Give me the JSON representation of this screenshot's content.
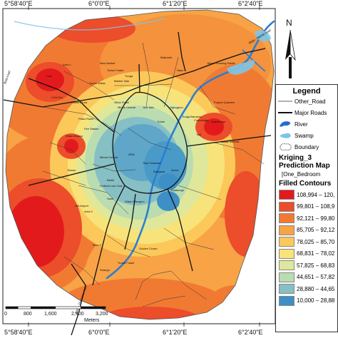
{
  "coords": {
    "top": [
      "5°58'40\"E",
      "6°0'0\"E",
      "6°1'20\"E",
      "6°2'40\"E"
    ],
    "bottom": [
      "5°58'40\"E",
      "6°0'0\"E",
      "6°1'20\"E",
      "6°2'40\"E"
    ]
  },
  "north": "N",
  "scale": {
    "ticks": [
      "0",
      "800",
      "1,600",
      "2,400",
      "3,200"
    ],
    "unit": "Meters"
  },
  "legend": {
    "title": "Legend",
    "items": [
      "Other_Road",
      "Major Roads",
      "River",
      "Swamp",
      "Boundary"
    ],
    "layer": "Kriging_3",
    "layer_sub": "Prediction Map",
    "field": "[One_Bedroom",
    "contours_title": "Filled Contours",
    "classes": [
      {
        "label": "108,994 – 120,",
        "color": "#e31a1c"
      },
      {
        "label": "99,801 – 108,9",
        "color": "#ec4d2a"
      },
      {
        "label": "92,121 – 99,80",
        "color": "#f17a33"
      },
      {
        "label": "85,705 – 92,12",
        "color": "#f7a346"
      },
      {
        "label": "78,025 – 85,70",
        "color": "#fcc85a"
      },
      {
        "label": "68,831 – 78,02",
        "color": "#f7e37a"
      },
      {
        "label": "57,825 – 68,83",
        "color": "#dfe79a"
      },
      {
        "label": "44,651 – 57,82",
        "color": "#b9dcb0"
      },
      {
        "label": "28,880 – 44,65",
        "color": "#86bfc4"
      },
      {
        "label": "10,000 – 28,88",
        "color": "#3d8fc6"
      }
    ]
  },
  "labels": {
    "river_label": "Bida - Minna road",
    "road_labels": [
      "Bida road",
      "Bida - Dumawa road"
    ],
    "places": [
      "Area 1",
      "New Market",
      "Tudun Fulani",
      "Maitumbi",
      "Jikpan Housing Estate",
      "Nkpo",
      "Lisa",
      "LGA Sec.",
      "Dutsen Kura",
      "Tudun Wada",
      "Barikin Sale",
      "Other Road",
      "Tunga",
      "Minna Central",
      "Jiza Tafa",
      "Project Quarters",
      "Kpankungu",
      "Paiko Road",
      "Fire Station",
      "Ogbugunu",
      "Tunga Barracks",
      "Tudun",
      "Tayi",
      "Dakar Maidoki",
      "Chanchaga",
      "Gidan Kwano",
      "Bosso",
      "GRA",
      "Minna Central",
      "Tinja Tsakuwa",
      "Federal Low Cost",
      "Dangana",
      "Arrive",
      "Bariki",
      "Kpakungu",
      "Sarki",
      "Gidan Mangoro",
      "Old Airport",
      "Area 2",
      "Area 3",
      "Golden Crown",
      "Tudun Fulani",
      "Shango",
      "Zarumai Fulani"
    ]
  }
}
